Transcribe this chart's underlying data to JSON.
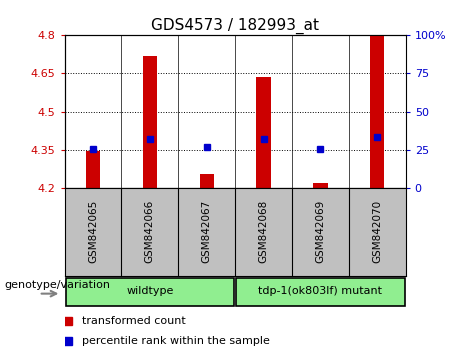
{
  "title": "GDS4573 / 182993_at",
  "samples": [
    "GSM842065",
    "GSM842066",
    "GSM842067",
    "GSM842068",
    "GSM842069",
    "GSM842070"
  ],
  "transformed_count": [
    4.345,
    4.72,
    4.255,
    4.635,
    4.22,
    4.8
  ],
  "percentile_rank_yvalues": [
    4.352,
    4.393,
    4.362,
    4.393,
    4.352,
    4.4
  ],
  "ymin": 4.2,
  "ymax": 4.8,
  "yticks": [
    4.2,
    4.35,
    4.5,
    4.65,
    4.8
  ],
  "ytick_labels": [
    "4.2",
    "4.35",
    "4.5",
    "4.65",
    "4.8"
  ],
  "right_yticks_pct": [
    0,
    25,
    50,
    75,
    100
  ],
  "right_ytick_labels": [
    "0",
    "25",
    "50",
    "75",
    "100%"
  ],
  "bar_color": "#CC0000",
  "dot_color": "#0000CC",
  "bar_width": 0.25,
  "background_color": "#FFFFFF",
  "group_color": "#90EE90",
  "label_box_color": "#C0C0C0",
  "group_label": "genotype/variation",
  "wildtype_label": "wildtype",
  "mutant_label": "tdp-1(ok803lf) mutant",
  "legend_items": [
    {
      "label": "transformed count",
      "color": "#CC0000"
    },
    {
      "label": "percentile rank within the sample",
      "color": "#0000CC"
    }
  ]
}
